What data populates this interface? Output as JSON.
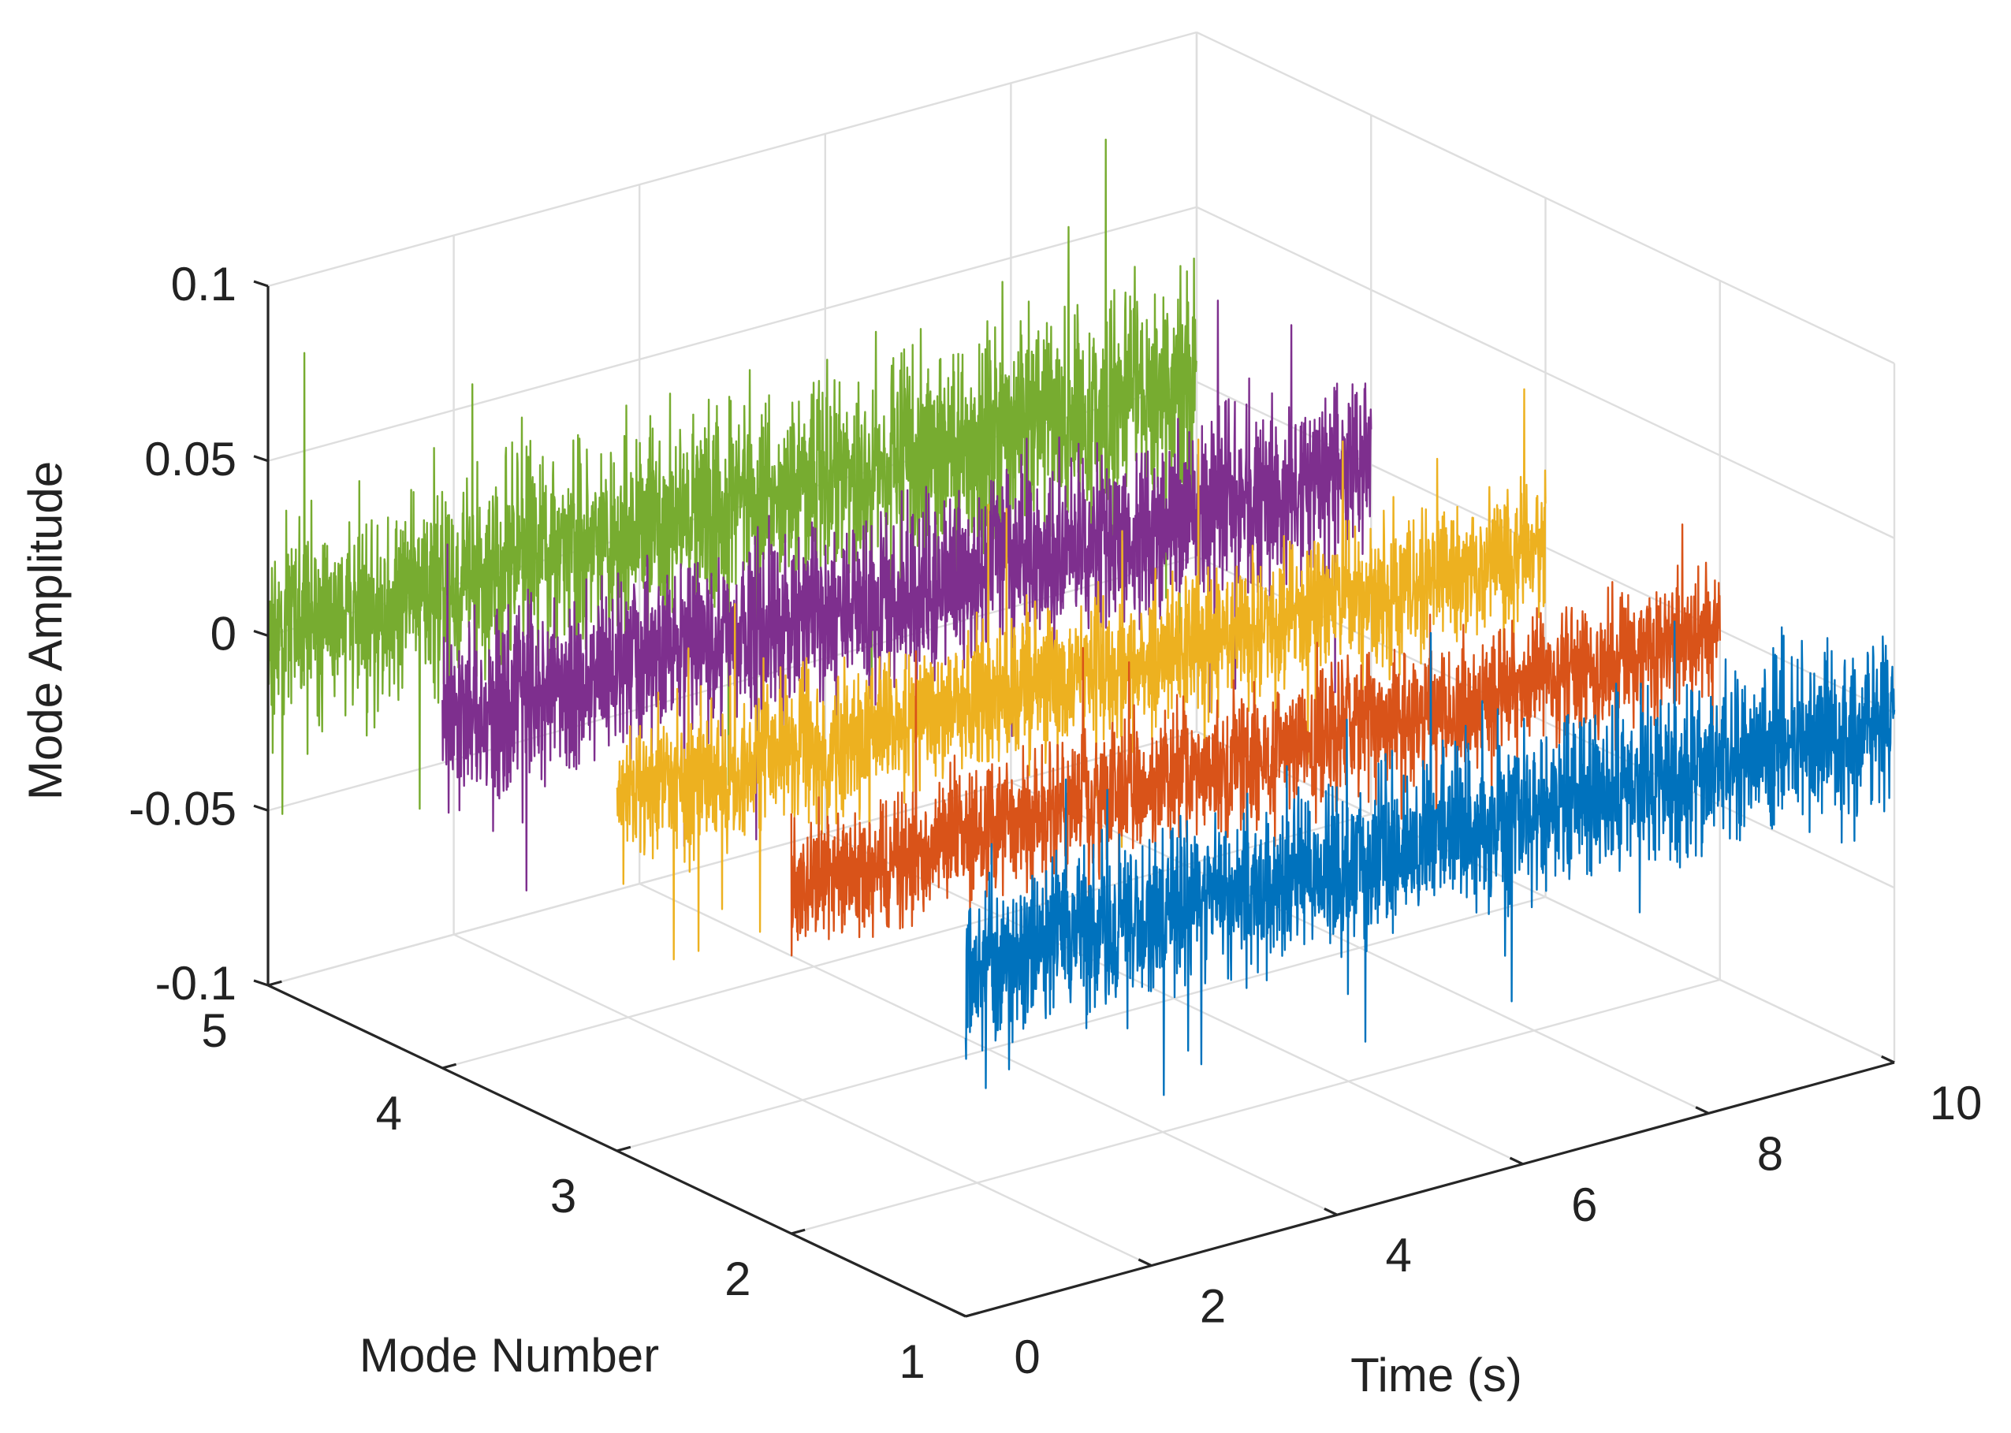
{
  "chart_data": {
    "type": "line",
    "subtype": "3d-waterfall",
    "title": "",
    "xlabel": "Time (s)",
    "ylabel": "Mode Number",
    "zlabel": "Mode Amplitude",
    "xlim": [
      0,
      10
    ],
    "ylim": [
      1,
      5
    ],
    "zlim": [
      -0.1,
      0.1
    ],
    "x_ticks": [
      "0",
      "2",
      "4",
      "6",
      "8",
      "10"
    ],
    "y_ticks": [
      "1",
      "2",
      "3",
      "4",
      "5"
    ],
    "z_ticks": [
      "-0.1",
      "-0.05",
      "0",
      "0.05",
      "0.1"
    ],
    "grid": true,
    "legend": "none",
    "series": [
      {
        "mode": 1,
        "color": "#0072BD",
        "noise_amplitude": 0.011,
        "x": [
          0,
          0.5,
          1,
          1.5,
          2,
          2.5,
          3,
          3.5,
          4,
          4.5,
          5,
          5.5,
          6,
          6.5,
          7,
          7.5,
          8,
          8.5,
          9,
          9.5,
          10
        ],
        "y": [
          0.0,
          -0.002,
          0.001,
          0.0,
          -0.001,
          0.002,
          0.0,
          0.001,
          -0.001,
          0.0,
          0.001,
          -0.002,
          0.0,
          0.001,
          0.0,
          -0.001,
          0.002,
          0.0,
          0.001,
          -0.001,
          0.0
        ]
      },
      {
        "mode": 2,
        "color": "#D95319",
        "noise_amplitude": 0.009,
        "x": [
          0,
          0.5,
          1,
          1.5,
          2,
          2.5,
          3,
          3.5,
          4,
          4.5,
          5,
          5.5,
          6,
          6.5,
          7,
          7.5,
          8,
          8.5,
          9,
          9.5,
          10
        ],
        "y": [
          0.0,
          0.001,
          -0.001,
          0.0,
          0.002,
          0.0,
          -0.001,
          0.001,
          0.0,
          0.0,
          -0.001,
          0.001,
          0.002,
          0.0,
          -0.001,
          0.0,
          0.001,
          0.0,
          -0.001,
          0.001,
          0.0
        ]
      },
      {
        "mode": 3,
        "color": "#EDB120",
        "noise_amplitude": 0.01,
        "x": [
          0,
          0.5,
          1,
          1.5,
          2,
          2.5,
          3,
          3.5,
          4,
          4.5,
          5,
          5.5,
          6,
          6.5,
          7,
          7.5,
          8,
          8.5,
          9,
          9.5,
          10
        ],
        "y": [
          0.0,
          0.002,
          0.0,
          -0.001,
          0.001,
          0.0,
          0.001,
          -0.002,
          0.0,
          0.001,
          0.0,
          0.0,
          -0.001,
          0.001,
          0.0,
          0.002,
          0.0,
          -0.001,
          0.0,
          0.001,
          0.0
        ]
      },
      {
        "mode": 4,
        "color": "#7E2F8E",
        "noise_amplitude": 0.012,
        "x": [
          0,
          0.5,
          1,
          1.5,
          2,
          2.5,
          3,
          3.5,
          4,
          4.5,
          5,
          5.5,
          6,
          6.5,
          7,
          7.5,
          8,
          8.5,
          9,
          9.5,
          10
        ],
        "y": [
          0.0,
          -0.001,
          0.001,
          0.0,
          0.0,
          0.002,
          -0.001,
          0.0,
          0.001,
          0.0,
          -0.002,
          0.0,
          0.001,
          0.0,
          0.0,
          -0.001,
          0.001,
          0.002,
          0.0,
          -0.001,
          0.0
        ]
      },
      {
        "mode": 5,
        "color": "#77AC30",
        "noise_amplitude": 0.014,
        "x": [
          0,
          0.5,
          1,
          1.5,
          2,
          2.5,
          3,
          3.5,
          4,
          4.5,
          5,
          5.5,
          6,
          6.5,
          7,
          7.5,
          8,
          8.5,
          9,
          9.5,
          10
        ],
        "y": [
          0.0,
          0.001,
          0.0,
          0.002,
          -0.001,
          0.0,
          0.001,
          0.0,
          -0.001,
          0.002,
          0.0,
          0.001,
          0.0,
          -0.002,
          0.001,
          0.0,
          0.0,
          0.001,
          -0.001,
          0.0,
          0.0
        ]
      }
    ]
  }
}
